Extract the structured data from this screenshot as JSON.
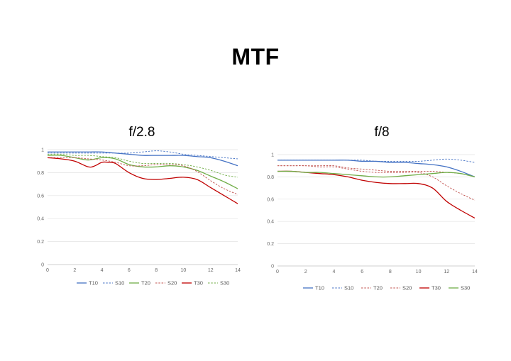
{
  "page_title": "MTF",
  "chart_data": [
    {
      "type": "line",
      "title": "f/2.8",
      "xlabel": "",
      "ylabel": "",
      "xlim": [
        0,
        14
      ],
      "ylim": [
        0,
        1
      ],
      "xticks": [
        0,
        2,
        4,
        6,
        8,
        10,
        12,
        14
      ],
      "yticks": [
        0,
        0.2,
        0.4,
        0.6,
        0.8,
        1
      ],
      "grid": "horizontal",
      "legend": "bottom",
      "series": [
        {
          "name": "T10",
          "color": "#4472c4",
          "dash": false,
          "x": [
            0,
            1,
            2,
            3,
            4,
            5,
            6,
            7,
            8,
            9,
            10,
            11,
            12,
            13,
            14
          ],
          "y": [
            0.98,
            0.98,
            0.98,
            0.98,
            0.98,
            0.97,
            0.96,
            0.95,
            0.95,
            0.95,
            0.95,
            0.94,
            0.93,
            0.9,
            0.86
          ]
        },
        {
          "name": "S10",
          "color": "#4472c4",
          "dash": true,
          "x": [
            0,
            1,
            2,
            3,
            4,
            5,
            6,
            7,
            8,
            9,
            10,
            11,
            12,
            13,
            14
          ],
          "y": [
            0.97,
            0.97,
            0.97,
            0.97,
            0.97,
            0.97,
            0.97,
            0.98,
            0.99,
            0.98,
            0.96,
            0.95,
            0.94,
            0.93,
            0.92
          ]
        },
        {
          "name": "T20",
          "color": "#70ad47",
          "dash": false,
          "x": [
            0,
            1,
            2,
            3,
            4,
            5,
            6,
            7,
            8,
            9,
            10,
            11,
            12,
            13,
            14
          ],
          "y": [
            0.95,
            0.95,
            0.93,
            0.91,
            0.93,
            0.92,
            0.87,
            0.85,
            0.85,
            0.86,
            0.85,
            0.82,
            0.77,
            0.72,
            0.66
          ]
        },
        {
          "name": "S20",
          "color": "#c0504d",
          "dash": true,
          "x": [
            0,
            1,
            2,
            3,
            4,
            5,
            6,
            7,
            8,
            9,
            10,
            11,
            12,
            13,
            14
          ],
          "y": [
            0.93,
            0.93,
            0.93,
            0.92,
            0.91,
            0.89,
            0.86,
            0.86,
            0.87,
            0.87,
            0.86,
            0.81,
            0.73,
            0.66,
            0.61
          ]
        },
        {
          "name": "T30",
          "color": "#c00000",
          "dash": false,
          "x": [
            0,
            1,
            2,
            3,
            3.5,
            4,
            4.5,
            5,
            6,
            7,
            8,
            9,
            10,
            11,
            12,
            13,
            14
          ],
          "y": [
            0.93,
            0.92,
            0.9,
            0.85,
            0.86,
            0.89,
            0.89,
            0.88,
            0.8,
            0.75,
            0.74,
            0.75,
            0.76,
            0.74,
            0.67,
            0.6,
            0.53
          ]
        },
        {
          "name": "S30",
          "color": "#70ad47",
          "dash": true,
          "x": [
            0,
            1,
            2,
            3,
            4,
            5,
            6,
            7,
            8,
            9,
            10,
            11,
            12,
            13,
            14
          ],
          "y": [
            0.96,
            0.96,
            0.95,
            0.95,
            0.94,
            0.93,
            0.9,
            0.88,
            0.88,
            0.88,
            0.87,
            0.85,
            0.82,
            0.78,
            0.76
          ]
        }
      ]
    },
    {
      "type": "line",
      "title": "f/8",
      "xlabel": "",
      "ylabel": "",
      "xlim": [
        0,
        14
      ],
      "ylim": [
        0,
        1
      ],
      "xticks": [
        0,
        2,
        4,
        6,
        8,
        10,
        12,
        14
      ],
      "yticks": [
        0,
        0.2,
        0.4,
        0.6,
        0.8,
        1
      ],
      "grid": "horizontal",
      "legend": "bottom",
      "series": [
        {
          "name": "T10",
          "color": "#4472c4",
          "dash": false,
          "x": [
            0,
            1,
            2,
            3,
            4,
            5,
            6,
            7,
            8,
            9,
            10,
            11,
            12,
            13,
            14
          ],
          "y": [
            0.95,
            0.95,
            0.95,
            0.95,
            0.95,
            0.95,
            0.94,
            0.94,
            0.93,
            0.93,
            0.92,
            0.91,
            0.89,
            0.85,
            0.8
          ]
        },
        {
          "name": "S10",
          "color": "#4472c4",
          "dash": true,
          "x": [
            0,
            1,
            2,
            3,
            4,
            5,
            6,
            7,
            8,
            9,
            10,
            11,
            12,
            13,
            14
          ],
          "y": [
            0.95,
            0.95,
            0.95,
            0.95,
            0.95,
            0.95,
            0.95,
            0.94,
            0.94,
            0.94,
            0.94,
            0.95,
            0.96,
            0.95,
            0.93
          ]
        },
        {
          "name": "T20",
          "color": "#c0504d",
          "dash": true,
          "x": [
            0,
            1,
            2,
            3,
            4,
            5,
            6,
            7,
            8,
            9,
            10,
            11,
            12,
            13,
            14
          ],
          "y": [
            0.9,
            0.9,
            0.9,
            0.89,
            0.89,
            0.87,
            0.85,
            0.84,
            0.84,
            0.84,
            0.84,
            0.8,
            0.72,
            0.65,
            0.59
          ]
        },
        {
          "name": "S20",
          "color": "#c0504d",
          "dash": true,
          "x": [
            0,
            1,
            2,
            3,
            4,
            5,
            6,
            7,
            8,
            9,
            10,
            11,
            12,
            13,
            14
          ],
          "y": [
            0.9,
            0.9,
            0.9,
            0.9,
            0.9,
            0.88,
            0.87,
            0.86,
            0.85,
            0.85,
            0.85,
            0.85,
            0.84,
            0.83,
            0.8
          ]
        },
        {
          "name": "T30",
          "color": "#c00000",
          "dash": false,
          "x": [
            0,
            1,
            2,
            3,
            4,
            5,
            6,
            7,
            8,
            9,
            10,
            11,
            12,
            13,
            14
          ],
          "y": [
            0.85,
            0.85,
            0.84,
            0.83,
            0.82,
            0.8,
            0.77,
            0.75,
            0.74,
            0.74,
            0.74,
            0.7,
            0.58,
            0.5,
            0.43
          ]
        },
        {
          "name": "S30",
          "color": "#70ad47",
          "dash": false,
          "x": [
            0,
            1,
            2,
            3,
            4,
            5,
            6,
            7,
            8,
            9,
            10,
            11,
            12,
            13,
            14
          ],
          "y": [
            0.85,
            0.85,
            0.84,
            0.84,
            0.83,
            0.82,
            0.81,
            0.8,
            0.8,
            0.81,
            0.82,
            0.83,
            0.84,
            0.83,
            0.8
          ]
        }
      ]
    }
  ]
}
